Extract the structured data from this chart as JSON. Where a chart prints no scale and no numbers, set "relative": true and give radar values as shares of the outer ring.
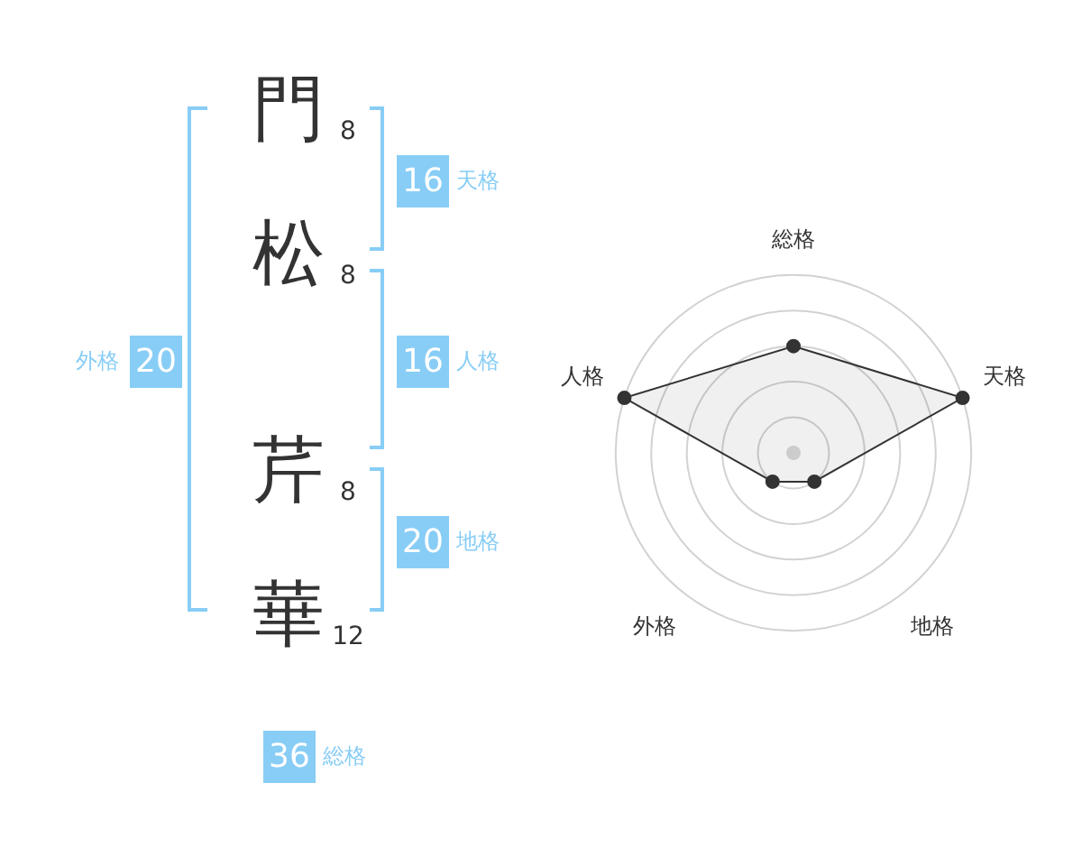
{
  "chart_data": [
    {
      "type": "other",
      "categories": [
        "門",
        "松",
        "芹",
        "華"
      ],
      "values": [
        8,
        8,
        8,
        12
      ],
      "data_labels": true
    },
    {
      "type": "other",
      "categories": [
        "天格",
        "人格",
        "地格",
        "外格",
        "総格"
      ],
      "values": [
        16,
        16,
        20,
        20,
        36
      ],
      "color": "#88cdf6",
      "data_labels": true
    },
    {
      "type": "radar",
      "categories": [
        "総格",
        "天格",
        "地格",
        "外格",
        "人格"
      ],
      "relative": true,
      "series": [
        {
          "color": "#333333",
          "values": [
            0.6,
            1,
            0.2,
            0.2,
            1
          ]
        }
      ],
      "grid": true,
      "marker": "circle"
    }
  ]
}
